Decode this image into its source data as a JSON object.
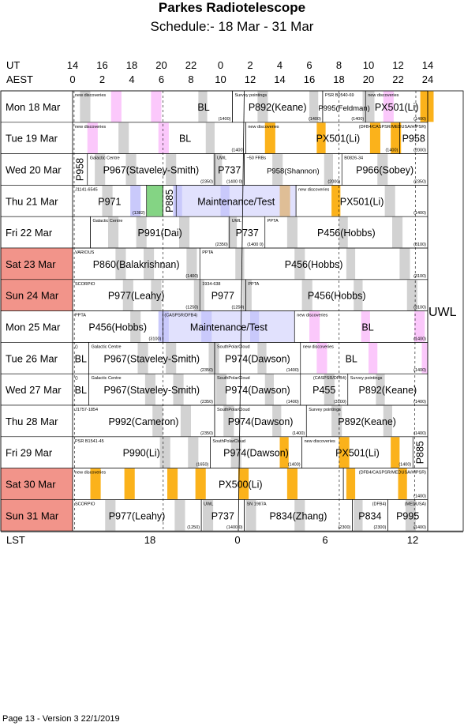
{
  "header": {
    "title": "Parkes Radiotelescope",
    "subtitle": "Schedule:- 18 Mar - 31 Mar"
  },
  "axes": {
    "ut_label": "UT",
    "aest_label": "AEST",
    "lst_label": "LST",
    "ut_ticks": [
      "14",
      "16",
      "18",
      "20",
      "22",
      "0",
      "2",
      "4",
      "6",
      "8",
      "10",
      "12",
      "14"
    ],
    "aest_ticks": [
      "0",
      "2",
      "4",
      "6",
      "8",
      "10",
      "12",
      "14",
      "16",
      "18",
      "20",
      "22",
      "24"
    ],
    "lst_ticks": [
      "18",
      "0",
      "6",
      "12"
    ]
  },
  "side_label": "UWL",
  "footer": "Page 13 - Version 3  22/1/2019",
  "colors": {
    "weekend": "#f2948a",
    "grey": "#d2d2d2",
    "pink": "#fbc8fb",
    "orange": "#fbb21b",
    "lavender": "#c9c9fb",
    "green": "#84d484"
  },
  "days": [
    {
      "label": "Mon  18 Mar",
      "weekend": false,
      "bands": [
        [
          0.5,
          1.2,
          "grey"
        ],
        [
          2.6,
          3.3,
          "pink"
        ],
        [
          5.3,
          6.0,
          "pink"
        ],
        [
          8.5,
          9.1,
          "grey"
        ],
        [
          12.5,
          13.2,
          "grey"
        ],
        [
          16.0,
          16.6,
          "grey"
        ],
        [
          19.6,
          20.4,
          "grey"
        ],
        [
          21.0,
          21.7,
          "pink"
        ],
        [
          23.5,
          24.4,
          "orange"
        ]
      ],
      "blocks": [
        {
          "from": 0,
          "to": 10.8,
          "tag": "new discoveries",
          "name": "BL",
          "note": "(1400)",
          "name_at": 0.82
        },
        {
          "from": 10.8,
          "to": 16.9,
          "tag": "Survey pointings",
          "name": "P892(Keane)",
          "note": "(1400)"
        },
        {
          "from": 16.9,
          "to": 19.8,
          "tag": "PSR B0540-69",
          "name": "P995(Feldman)",
          "note": "(1400)",
          "small": true
        },
        {
          "from": 19.8,
          "to": 24,
          "tag": "new discoveries",
          "name": "PX501(Li)",
          "note": "(1400)"
        }
      ]
    },
    {
      "label": "Tue   19 Mar",
      "weekend": false,
      "bands": [
        [
          1.0,
          1.7,
          "pink"
        ],
        [
          3.1,
          3.8,
          "grey"
        ],
        [
          5.8,
          6.5,
          "pink"
        ],
        [
          9.0,
          9.6,
          "grey"
        ],
        [
          13.0,
          13.7,
          "orange"
        ],
        [
          16.5,
          17.1,
          "orange"
        ],
        [
          20.1,
          20.8,
          "orange"
        ],
        [
          21.5,
          22.2,
          "orange"
        ]
      ],
      "blocks": [
        {
          "from": 0,
          "to": 11.7,
          "tag": "new discoveries",
          "name": "BL",
          "note": "(1400)",
          "name_at": 0.65
        },
        {
          "from": 11.7,
          "to": 22.1,
          "tag": "new discoveries",
          "name": "PX501(Li)",
          "note": "(1400)",
          "name_at": 0.6
        },
        {
          "from": 22.1,
          "to": 24,
          "tag": "(DFB4/CASPSR/MEDUSA/HIPSR)",
          "name": "P958",
          "note": "(2000)"
        }
      ]
    },
    {
      "label": "Wed  20 Mar",
      "weekend": false,
      "bands": [
        [
          1.5,
          2.2,
          "grey"
        ],
        [
          3.6,
          4.3,
          "grey"
        ],
        [
          6.3,
          7.0,
          "grey"
        ],
        [
          9.5,
          10.1,
          "grey"
        ],
        [
          13.5,
          14.2,
          "grey"
        ],
        [
          17.0,
          17.6,
          "grey"
        ],
        [
          20.6,
          21.3,
          "grey"
        ]
      ],
      "blocks": [
        {
          "from": 0,
          "to": 1.0,
          "tag": "",
          "name": "P958",
          "note": "",
          "vertical": true
        },
        {
          "from": 1.0,
          "to": 9.6,
          "tag": "Galactic Centre",
          "name": "P967(Staveley-Smith)",
          "note": "(2350)"
        },
        {
          "from": 9.6,
          "to": 11.6,
          "tag": "UWL",
          "name": "P737",
          "note": "(1400 0)"
        },
        {
          "from": 11.6,
          "to": 18.2,
          "tag": "~50 FRBs",
          "name": "P958(Shannon)",
          "note": "(2000)",
          "small": true
        },
        {
          "from": 18.2,
          "to": 24,
          "tag": "B0826-34",
          "name": "P966(Sobey)",
          "note": "(2350)"
        }
      ]
    },
    {
      "label": "Thu   21 Mar",
      "weekend": false,
      "bands": [
        [
          2.0,
          2.7,
          "grey"
        ],
        [
          3.9,
          4.6,
          "lavender"
        ],
        [
          6.8,
          7.4,
          "lavender"
        ],
        [
          10.0,
          10.6,
          "lavender"
        ],
        [
          14.0,
          14.7,
          "orange"
        ],
        [
          17.5,
          18.1,
          "orange"
        ],
        [
          21.1,
          21.8,
          "grey"
        ]
      ],
      "blocks": [
        {
          "from": 0,
          "to": 5.0,
          "tag": "J1141-6545",
          "name": "P971",
          "note": "(1382)"
        },
        {
          "from": 5.0,
          "to": 6.1,
          "tag": "",
          "name": "",
          "note": "",
          "fill": "green"
        },
        {
          "from": 6.1,
          "to": 7.0,
          "tag": "",
          "name": "P885",
          "note": "",
          "vertical": true
        },
        {
          "from": 7.0,
          "to": 15.1,
          "tag": "",
          "name": "Maintenance/Test",
          "note": "",
          "fill": "lavender"
        },
        {
          "from": 15.1,
          "to": 24,
          "tag": "new discoveries",
          "name": "PX501(Li)",
          "note": "(1400)"
        }
      ]
    },
    {
      "label": "Fri     22 Mar",
      "weekend": false,
      "bands": [
        [
          2.4,
          3.1,
          "grey"
        ],
        [
          4.3,
          5.0,
          "grey"
        ],
        [
          7.2,
          7.9,
          "grey"
        ],
        [
          10.5,
          11.1,
          "grey"
        ],
        [
          14.5,
          15.2,
          "grey"
        ],
        [
          18.0,
          18.6,
          "grey"
        ],
        [
          21.6,
          22.3,
          "grey"
        ]
      ],
      "blocks": [
        {
          "from": 0,
          "to": 1.2,
          "tag": "",
          "name": "",
          "note": ""
        },
        {
          "from": 1.2,
          "to": 10.6,
          "tag": "Galactic Centre",
          "name": "P991(Dai)",
          "note": "(2350)"
        },
        {
          "from": 10.6,
          "to": 13.0,
          "tag": "UWL",
          "name": "P737",
          "note": "(1400 0)"
        },
        {
          "from": 13.0,
          "to": 24,
          "tag": "PPTA",
          "name": "P456(Hobbs)",
          "note": "(3100)"
        }
      ]
    },
    {
      "label": "Sat   23 Mar",
      "weekend": true,
      "bands": [
        [
          2.9,
          3.6,
          "grey"
        ],
        [
          4.8,
          5.5,
          "grey"
        ],
        [
          7.7,
          8.4,
          "grey"
        ],
        [
          11.0,
          11.6,
          "grey"
        ],
        [
          15.0,
          15.7,
          "grey"
        ],
        [
          18.5,
          19.1,
          "grey"
        ],
        [
          22.1,
          22.8,
          "grey"
        ]
      ],
      "blocks": [
        {
          "from": 0,
          "to": 8.6,
          "tag": "VARIOUS",
          "name": "P860(Balakrishnan)",
          "note": "(1400)"
        },
        {
          "from": 8.6,
          "to": 24,
          "tag": "PPTA",
          "name": "P456(Hobbs)",
          "note": "(3100)"
        }
      ]
    },
    {
      "label": "Sun   24 Mar",
      "weekend": true,
      "bands": [
        [
          3.4,
          4.1,
          "grey"
        ],
        [
          5.3,
          6.0,
          "grey"
        ],
        [
          8.2,
          8.9,
          "grey"
        ],
        [
          11.5,
          12.1,
          "grey"
        ],
        [
          15.5,
          16.2,
          "grey"
        ],
        [
          19.0,
          19.6,
          "grey"
        ],
        [
          22.6,
          23.3,
          "grey"
        ]
      ],
      "blocks": [
        {
          "from": 0,
          "to": 8.6,
          "tag": "SCORPIO",
          "name": "P977(Leahy)",
          "note": "(1250)"
        },
        {
          "from": 8.6,
          "to": 11.7,
          "tag": "1934-638",
          "name": "P977",
          "note": "(1250)"
        },
        {
          "from": 11.7,
          "to": 24,
          "tag": "PPTA",
          "name": "P456(Hobbs)",
          "note": "(3100)"
        }
      ]
    },
    {
      "label": "Mon  25 Mar",
      "weekend": false,
      "bands": [
        [
          3.9,
          4.6,
          "grey"
        ],
        [
          5.8,
          6.5,
          "lavender"
        ],
        [
          8.7,
          9.4,
          "lavender"
        ],
        [
          12.0,
          12.6,
          "lavender"
        ],
        [
          16.0,
          16.7,
          "pink"
        ],
        [
          19.5,
          20.1,
          "pink"
        ],
        [
          23.1,
          23.8,
          "pink"
        ]
      ],
      "blocks": [
        {
          "from": 0,
          "to": 6.1,
          "tag": "PPTA",
          "name": "P456(Hobbs)",
          "note": "(3100)"
        },
        {
          "from": 6.1,
          "to": 15.0,
          "tag": "(CASPSR/DFB4)",
          "name": "Maintenance/Test",
          "note": "",
          "fill": "lavender",
          "tag_left": true
        },
        {
          "from": 15.0,
          "to": 24,
          "tag": "new discoveries",
          "name": "BL",
          "note": "(1400)",
          "name_at": 0.55
        }
      ]
    },
    {
      "label": "Tue   26 Mar",
      "weekend": false,
      "bands": [
        [
          4.4,
          5.1,
          "grey"
        ],
        [
          6.3,
          7.0,
          "grey"
        ],
        [
          9.2,
          9.9,
          "grey"
        ],
        [
          12.5,
          13.1,
          "grey"
        ],
        [
          16.5,
          17.2,
          "pink"
        ],
        [
          20.0,
          20.6,
          "pink"
        ],
        [
          23.6,
          24.0,
          "pink"
        ]
      ],
      "blocks": [
        {
          "from": 0,
          "to": 1.1,
          "tag": "()",
          "name": "BL",
          "note": ""
        },
        {
          "from": 1.1,
          "to": 9.6,
          "tag": "Galactic Centre",
          "name": "P967(Staveley-Smith)",
          "note": "(2350)"
        },
        {
          "from": 9.6,
          "to": 15.4,
          "tag": "SouthPolarCloud",
          "name": "P974(Dawson)",
          "note": "(1400)"
        },
        {
          "from": 15.4,
          "to": 24,
          "tag": "new discoveries",
          "name": "BL",
          "note": "(1400)",
          "name_at": 0.4
        }
      ]
    },
    {
      "label": "Wed  27 Mar",
      "weekend": false,
      "bands": [
        [
          4.9,
          5.6,
          "grey"
        ],
        [
          6.8,
          7.5,
          "grey"
        ],
        [
          9.7,
          10.4,
          "grey"
        ],
        [
          13.0,
          13.6,
          "grey"
        ],
        [
          17.0,
          17.7,
          "grey"
        ],
        [
          20.5,
          21.1,
          "grey"
        ]
      ],
      "blocks": [
        {
          "from": 0,
          "to": 1.1,
          "tag": "()",
          "name": "BL",
          "note": ""
        },
        {
          "from": 1.1,
          "to": 9.6,
          "tag": "Galactic Centre",
          "name": "P967(Staveley-Smith)",
          "note": "(2350)"
        },
        {
          "from": 9.6,
          "to": 15.4,
          "tag": "SouthPolarCloud",
          "name": "P974(Dawson)",
          "note": "(1400)"
        },
        {
          "from": 15.4,
          "to": 18.6,
          "tag": "(CASPSR/DFB4)",
          "name": "P455",
          "note": "(3100)"
        },
        {
          "from": 18.6,
          "to": 24,
          "tag": "Survey pointings",
          "name": "P892(Keane)",
          "note": "(1400)"
        }
      ]
    },
    {
      "label": "Thu   28 Mar",
      "weekend": false,
      "bands": [
        [
          5.4,
          6.1,
          "grey"
        ],
        [
          7.3,
          8.0,
          "grey"
        ],
        [
          10.2,
          10.9,
          "grey"
        ],
        [
          13.5,
          14.1,
          "grey"
        ],
        [
          17.5,
          18.2,
          "grey"
        ],
        [
          21.0,
          21.6,
          "grey"
        ]
      ],
      "blocks": [
        {
          "from": 0,
          "to": 9.6,
          "tag": "J1757-1854",
          "name": "P992(Cameron)",
          "note": "(2350)"
        },
        {
          "from": 9.6,
          "to": 15.8,
          "tag": "SouthPolarCloud",
          "name": "P974(Dawson)",
          "note": "(1400)"
        },
        {
          "from": 15.8,
          "to": 24,
          "tag": "Survey pointings",
          "name": "P892(Keane)",
          "note": "(1400)"
        }
      ]
    },
    {
      "label": "Fri     29 Mar",
      "weekend": false,
      "bands": [
        [
          5.9,
          6.6,
          "grey"
        ],
        [
          7.8,
          8.5,
          "grey"
        ],
        [
          10.7,
          11.4,
          "grey"
        ],
        [
          14.0,
          14.6,
          "orange"
        ],
        [
          18.0,
          18.7,
          "orange"
        ],
        [
          21.5,
          22.1,
          "orange"
        ]
      ],
      "blocks": [
        {
          "from": 0,
          "to": 9.3,
          "tag": "PSR B1541-45",
          "name": "P990(Li)",
          "note": "(1650)"
        },
        {
          "from": 9.3,
          "to": 15.5,
          "tag": "SouthPolarCloud",
          "name": "P974(Dawson)",
          "note": "(1400)"
        },
        {
          "from": 15.5,
          "to": 23.0,
          "tag": "new discoveries",
          "name": "PX501(Li)",
          "note": "(1400)"
        },
        {
          "from": 23.0,
          "to": 24,
          "tag": "",
          "name": "P885",
          "note": "",
          "vertical": true
        }
      ]
    },
    {
      "label": "Sat   30 Mar",
      "weekend": true,
      "bands": [
        [
          1.2,
          1.9,
          "orange"
        ],
        [
          3.5,
          4.2,
          "orange"
        ],
        [
          6.4,
          7.1,
          "orange"
        ],
        [
          8.3,
          9.0,
          "orange"
        ],
        [
          11.2,
          11.9,
          "orange"
        ],
        [
          14.5,
          15.2,
          "orange"
        ],
        [
          18.5,
          19.1,
          "orange"
        ],
        [
          22.0,
          22.6,
          "orange"
        ]
      ],
      "blocks": [
        {
          "from": 0,
          "to": 18.3,
          "tag": "new discoveries",
          "name": "PX500(Li)",
          "note": "",
          "name_at": 0.62
        },
        {
          "from": 18.3,
          "to": 24,
          "tag": "(DFB4/CASPSR/MEDUSA/HIPSR)",
          "name": "",
          "note": "(1400)"
        }
      ]
    },
    {
      "label": "Sun   31 Mar",
      "weekend": true,
      "bands": [
        [
          2.2,
          2.9,
          "grey"
        ],
        [
          6.9,
          7.6,
          "grey"
        ],
        [
          8.8,
          9.5,
          "grey"
        ],
        [
          11.7,
          12.4,
          "grey"
        ],
        [
          15.0,
          15.7,
          "grey"
        ],
        [
          19.0,
          19.6,
          "grey"
        ],
        [
          22.5,
          23.2,
          "grey"
        ]
      ],
      "blocks": [
        {
          "from": 0,
          "to": 8.7,
          "tag": "SCORPIO",
          "name": "P977(Leahy)",
          "note": "(1250)"
        },
        {
          "from": 8.7,
          "to": 11.6,
          "tag": "UWL",
          "name": "P737",
          "note": "(1400 0)"
        },
        {
          "from": 11.6,
          "to": 18.9,
          "tag": "SN 1987A",
          "name": "P834(Zhang)",
          "note": "(2300)"
        },
        {
          "from": 18.9,
          "to": 21.3,
          "tag": "(DFB4)",
          "name": "P834",
          "note": "(2300)"
        },
        {
          "from": 21.3,
          "to": 24,
          "tag": "(MEDUSA)",
          "name": "P995",
          "note": "(1400)"
        }
      ]
    }
  ]
}
